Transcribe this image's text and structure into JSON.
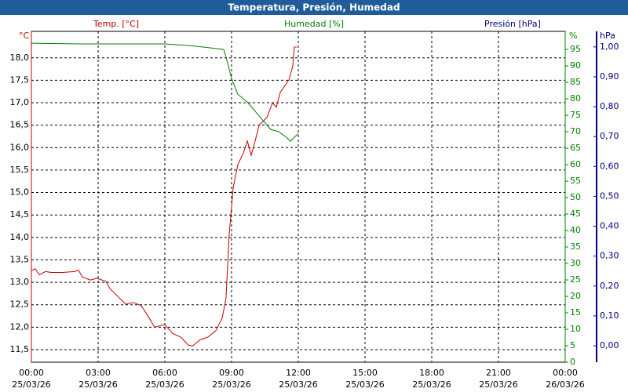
{
  "chart_data": {
    "type": "line",
    "title": "Temperatura, Presión, Humedad",
    "xlim": [
      0,
      24
    ],
    "xticks": [
      {
        "value": 0,
        "label": "00:00",
        "date": "25/03/26"
      },
      {
        "value": 3,
        "label": "03:00",
        "date": "25/03/26"
      },
      {
        "value": 6,
        "label": "06:00",
        "date": "25/03/26"
      },
      {
        "value": 9,
        "label": "09:00",
        "date": "25/03/26"
      },
      {
        "value": 12,
        "label": "12:00",
        "date": "25/03/26"
      },
      {
        "value": 15,
        "label": "15:00",
        "date": "25/03/26"
      },
      {
        "value": 18,
        "label": "18:00",
        "date": "25/03/26"
      },
      {
        "value": 21,
        "label": "21:00",
        "date": "25/03/26"
      },
      {
        "value": 24,
        "label": "00:00",
        "date": "26/03/26"
      }
    ],
    "y_title": "Temp. [°C]",
    "y_unit": "°C",
    "y_color": "#c00000",
    "ylim": [
      11.22,
      18.59
    ],
    "yticks": [
      {
        "value": 11.5,
        "label": "11,5"
      },
      {
        "value": 12,
        "label": "12,0"
      },
      {
        "value": 12.5,
        "label": "12,5"
      },
      {
        "value": 13,
        "label": "13,0"
      },
      {
        "value": 13.5,
        "label": "13,5"
      },
      {
        "value": 14,
        "label": "14,0"
      },
      {
        "value": 14.5,
        "label": "14,5"
      },
      {
        "value": 15,
        "label": "15,0"
      },
      {
        "value": 15.5,
        "label": "15,5"
      },
      {
        "value": 16,
        "label": "16,0"
      },
      {
        "value": 16.5,
        "label": "16,5"
      },
      {
        "value": 17,
        "label": "17,0"
      },
      {
        "value": 17.5,
        "label": "17,5"
      },
      {
        "value": 18,
        "label": "18,0"
      }
    ],
    "y2_title": "Humedad [%]",
    "y2_unit": "%",
    "y2_color": "#008000",
    "y2lim": [
      0,
      100.5
    ],
    "y2ticks": [
      0,
      5,
      10,
      15,
      20,
      25,
      30,
      35,
      40,
      45,
      50,
      55,
      60,
      65,
      70,
      75,
      80,
      85,
      90,
      95
    ],
    "y3_title": "Presión [hPa]",
    "y3_unit": "hPa",
    "y3_color": "#000080",
    "y3lim": [
      -0.055,
      1.052
    ],
    "y3ticks": [
      {
        "value": 0,
        "label": "0,00"
      },
      {
        "value": 0.1,
        "label": "0,10"
      },
      {
        "value": 0.2,
        "label": "0,20"
      },
      {
        "value": 0.3,
        "label": "0,30"
      },
      {
        "value": 0.4,
        "label": "0,40"
      },
      {
        "value": 0.5,
        "label": "0,50"
      },
      {
        "value": 0.6,
        "label": "0,60"
      },
      {
        "value": 0.7,
        "label": "0,70"
      },
      {
        "value": 0.8,
        "label": "0,80"
      },
      {
        "value": 0.9,
        "label": "0,90"
      },
      {
        "value": 1,
        "label": "1,00"
      }
    ],
    "grid": true,
    "series": [
      {
        "color": "#c00000",
        "axis": "y",
        "x": [
          0,
          0.18,
          0.35,
          0.64,
          0.88,
          1.41,
          1.94,
          2.12,
          2.29,
          2.65,
          2.94,
          3.35,
          3.53,
          3.88,
          4.24,
          4.59,
          4.94,
          5.29,
          5.54,
          6.0,
          6.35,
          6.71,
          7.06,
          7.24,
          7.59,
          7.94,
          8.29,
          8.58,
          8.75,
          8.89,
          9.07,
          9.28,
          9.53,
          9.71,
          9.88,
          10.06,
          10.24,
          10.59,
          10.84,
          11.01,
          11.19,
          11.58,
          11.75,
          11.82,
          11.93
        ],
        "values": [
          13.26,
          13.3,
          13.17,
          13.24,
          13.22,
          13.22,
          13.24,
          13.27,
          13.12,
          13.05,
          13.09,
          13.02,
          12.86,
          12.69,
          12.51,
          12.55,
          12.48,
          12.21,
          12.0,
          12.06,
          11.86,
          11.78,
          11.6,
          11.58,
          11.72,
          11.78,
          11.92,
          12.21,
          12.65,
          14.05,
          15.1,
          15.62,
          15.88,
          16.15,
          15.83,
          16.15,
          16.5,
          16.67,
          17.0,
          16.9,
          17.23,
          17.51,
          17.81,
          18.24,
          18.24
        ]
      },
      {
        "color": "#008000",
        "axis": "y2",
        "x": [
          0,
          2.12,
          6,
          7.06,
          7.76,
          8.65,
          8.82,
          9.0,
          9.28,
          9.71,
          10.24,
          10.76,
          11.12,
          11.47,
          11.65,
          11.82,
          12.0
        ],
        "values": [
          96.9,
          96.7,
          96.7,
          96.2,
          95.7,
          95.0,
          91.0,
          86.2,
          81.4,
          79.0,
          74.8,
          70.7,
          70.0,
          68.3,
          67.1,
          68.3,
          69.5
        ]
      }
    ]
  }
}
